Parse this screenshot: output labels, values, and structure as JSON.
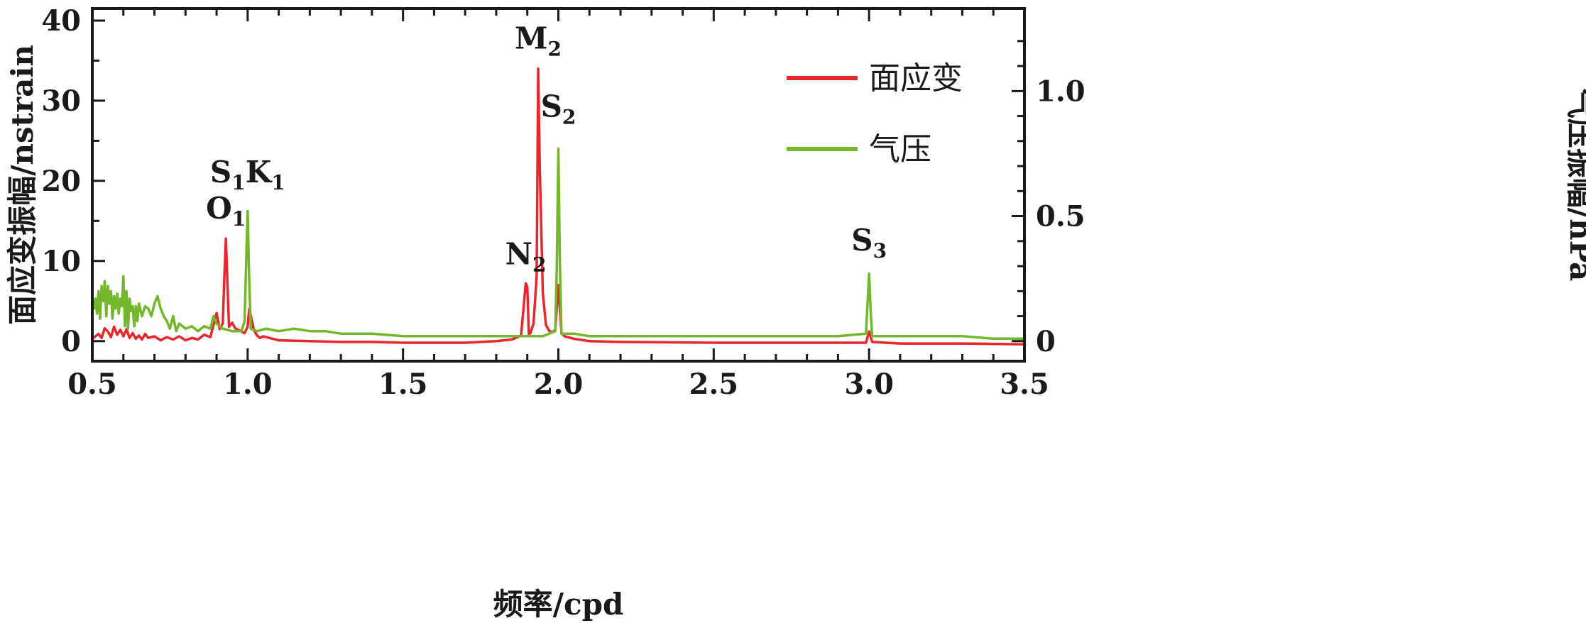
{
  "chart_data": {
    "type": "line",
    "xlabel": "频率/cpd",
    "ylabel_left": "面应变振幅/nstrain",
    "ylabel_right": "气压振幅/hPa",
    "xlim": [
      0.5,
      3.5
    ],
    "ylim_left": [
      -2.5,
      41.5
    ],
    "ylim_right": [
      -0.08,
      1.33
    ],
    "x_ticks": [
      "0.5",
      "1.0",
      "1.5",
      "2.0",
      "2.5",
      "3.0",
      "3.5"
    ],
    "y_left_ticks": [
      "0",
      "10",
      "20",
      "30",
      "40"
    ],
    "y_right_ticks": [
      "0",
      "0.5",
      "1.0"
    ],
    "legend_position": "top-right",
    "series": [
      {
        "name": "面应变",
        "axis": "left",
        "color": "#e8272d",
        "points": [
          [
            0.5,
            0.3
          ],
          [
            0.51,
            0.6
          ],
          [
            0.52,
            0.9
          ],
          [
            0.53,
            0.4
          ],
          [
            0.54,
            1.6
          ],
          [
            0.55,
            1.2
          ],
          [
            0.56,
            0.5
          ],
          [
            0.57,
            1.8
          ],
          [
            0.58,
            0.8
          ],
          [
            0.59,
            1.4
          ],
          [
            0.6,
            0.6
          ],
          [
            0.61,
            1.5
          ],
          [
            0.62,
            0.4
          ],
          [
            0.63,
            1.0
          ],
          [
            0.64,
            0.3
          ],
          [
            0.65,
            0.7
          ],
          [
            0.66,
            0.2
          ],
          [
            0.67,
            0.9
          ],
          [
            0.68,
            0.4
          ],
          [
            0.7,
            0.6
          ],
          [
            0.72,
            0.1
          ],
          [
            0.74,
            0.5
          ],
          [
            0.76,
            0.2
          ],
          [
            0.78,
            0.6
          ],
          [
            0.8,
            0.1
          ],
          [
            0.82,
            0.4
          ],
          [
            0.84,
            0.2
          ],
          [
            0.86,
            0.8
          ],
          [
            0.88,
            0.5
          ],
          [
            0.89,
            2.0
          ],
          [
            0.9,
            3.5
          ],
          [
            0.91,
            1.5
          ],
          [
            0.92,
            2.2
          ],
          [
            0.925,
            8.0
          ],
          [
            0.93,
            12.8
          ],
          [
            0.935,
            7.0
          ],
          [
            0.94,
            1.8
          ],
          [
            0.95,
            2.3
          ],
          [
            0.96,
            1.6
          ],
          [
            0.97,
            1.4
          ],
          [
            0.98,
            1.2
          ],
          [
            0.99,
            1.0
          ],
          [
            1.0,
            1.8
          ],
          [
            1.005,
            4.0
          ],
          [
            1.01,
            3.2
          ],
          [
            1.02,
            1.4
          ],
          [
            1.03,
            0.7
          ],
          [
            1.04,
            0.4
          ],
          [
            1.05,
            0.6
          ],
          [
            1.1,
            0.1
          ],
          [
            1.2,
            0.0
          ],
          [
            1.3,
            -0.1
          ],
          [
            1.4,
            -0.1
          ],
          [
            1.5,
            -0.2
          ],
          [
            1.6,
            -0.2
          ],
          [
            1.7,
            -0.2
          ],
          [
            1.8,
            0.0
          ],
          [
            1.85,
            0.2
          ],
          [
            1.88,
            0.7
          ],
          [
            1.895,
            7.2
          ],
          [
            1.9,
            6.8
          ],
          [
            1.905,
            0.9
          ],
          [
            1.91,
            1.0
          ],
          [
            1.92,
            2.2
          ],
          [
            1.93,
            8.0
          ],
          [
            1.935,
            34.0
          ],
          [
            1.94,
            22.0
          ],
          [
            1.95,
            6.0
          ],
          [
            1.96,
            2.0
          ],
          [
            1.97,
            1.3
          ],
          [
            1.98,
            1.1
          ],
          [
            1.99,
            1.4
          ],
          [
            2.0,
            7.0
          ],
          [
            2.005,
            4.0
          ],
          [
            2.01,
            1.0
          ],
          [
            2.02,
            0.6
          ],
          [
            2.05,
            0.3
          ],
          [
            2.1,
            0.0
          ],
          [
            2.2,
            -0.1
          ],
          [
            2.5,
            -0.2
          ],
          [
            2.8,
            -0.2
          ],
          [
            2.99,
            -0.2
          ],
          [
            3.0,
            1.2
          ],
          [
            3.01,
            -0.1
          ],
          [
            3.1,
            -0.3
          ],
          [
            3.3,
            -0.3
          ],
          [
            3.5,
            -0.4
          ]
        ]
      },
      {
        "name": "气压",
        "axis": "right",
        "color": "#73b72b",
        "points": [
          [
            0.5,
            0.16
          ],
          [
            0.505,
            0.13
          ],
          [
            0.51,
            0.17
          ],
          [
            0.515,
            0.11
          ],
          [
            0.52,
            0.2
          ],
          [
            0.525,
            0.09
          ],
          [
            0.53,
            0.22
          ],
          [
            0.535,
            0.16
          ],
          [
            0.54,
            0.24
          ],
          [
            0.545,
            0.1
          ],
          [
            0.55,
            0.22
          ],
          [
            0.555,
            0.15
          ],
          [
            0.56,
            0.2
          ],
          [
            0.565,
            0.09
          ],
          [
            0.57,
            0.18
          ],
          [
            0.575,
            0.13
          ],
          [
            0.58,
            0.19
          ],
          [
            0.585,
            0.11
          ],
          [
            0.59,
            0.17
          ],
          [
            0.595,
            0.14
          ],
          [
            0.6,
            0.26
          ],
          [
            0.605,
            0.06
          ],
          [
            0.61,
            0.2
          ],
          [
            0.615,
            0.05
          ],
          [
            0.62,
            0.17
          ],
          [
            0.625,
            0.12
          ],
          [
            0.63,
            0.14
          ],
          [
            0.635,
            0.06
          ],
          [
            0.64,
            0.14
          ],
          [
            0.645,
            0.08
          ],
          [
            0.65,
            0.15
          ],
          [
            0.66,
            0.1
          ],
          [
            0.67,
            0.14
          ],
          [
            0.68,
            0.13
          ],
          [
            0.69,
            0.1
          ],
          [
            0.7,
            0.15
          ],
          [
            0.71,
            0.18
          ],
          [
            0.72,
            0.13
          ],
          [
            0.73,
            0.1
          ],
          [
            0.74,
            0.08
          ],
          [
            0.75,
            0.05
          ],
          [
            0.76,
            0.1
          ],
          [
            0.77,
            0.04
          ],
          [
            0.78,
            0.07
          ],
          [
            0.8,
            0.05
          ],
          [
            0.82,
            0.06
          ],
          [
            0.84,
            0.04
          ],
          [
            0.86,
            0.06
          ],
          [
            0.88,
            0.05
          ],
          [
            0.89,
            0.1
          ],
          [
            0.9,
            0.07
          ],
          [
            0.92,
            0.05
          ],
          [
            0.95,
            0.04
          ],
          [
            0.98,
            0.04
          ],
          [
            0.99,
            0.08
          ],
          [
            0.995,
            0.3
          ],
          [
            1.0,
            0.52
          ],
          [
            1.005,
            0.25
          ],
          [
            1.01,
            0.05
          ],
          [
            1.03,
            0.04
          ],
          [
            1.06,
            0.05
          ],
          [
            1.1,
            0.04
          ],
          [
            1.15,
            0.05
          ],
          [
            1.2,
            0.04
          ],
          [
            1.25,
            0.04
          ],
          [
            1.3,
            0.03
          ],
          [
            1.4,
            0.03
          ],
          [
            1.5,
            0.02
          ],
          [
            1.6,
            0.02
          ],
          [
            1.7,
            0.02
          ],
          [
            1.8,
            0.02
          ],
          [
            1.9,
            0.02
          ],
          [
            1.95,
            0.02
          ],
          [
            1.99,
            0.04
          ],
          [
            1.995,
            0.3
          ],
          [
            2.0,
            0.77
          ],
          [
            2.005,
            0.3
          ],
          [
            2.01,
            0.03
          ],
          [
            2.05,
            0.03
          ],
          [
            2.1,
            0.02
          ],
          [
            2.2,
            0.02
          ],
          [
            2.3,
            0.02
          ],
          [
            2.4,
            0.02
          ],
          [
            2.5,
            0.02
          ],
          [
            2.6,
            0.02
          ],
          [
            2.7,
            0.02
          ],
          [
            2.8,
            0.02
          ],
          [
            2.9,
            0.02
          ],
          [
            2.99,
            0.03
          ],
          [
            2.995,
            0.15
          ],
          [
            3.0,
            0.27
          ],
          [
            3.005,
            0.12
          ],
          [
            3.01,
            0.02
          ],
          [
            3.1,
            0.02
          ],
          [
            3.2,
            0.02
          ],
          [
            3.3,
            0.02
          ],
          [
            3.4,
            0.01
          ],
          [
            3.5,
            0.01
          ]
        ]
      }
    ],
    "annotations": [
      {
        "main": "O",
        "sub": "1",
        "x": 0.93,
        "y": 13.0
      },
      {
        "main": "S",
        "sub": "1",
        "main2": "K",
        "sub2": "1",
        "x": 1.0,
        "y": 17.5
      },
      {
        "main": "N",
        "sub": "2",
        "x": 1.895,
        "y": 7.3
      },
      {
        "main": "M",
        "sub": "2",
        "x": 1.935,
        "y": 34.2
      },
      {
        "main": "S",
        "sub": "2",
        "x": 2.0,
        "y": 25.7
      },
      {
        "main": "S",
        "sub": "3",
        "x": 3.0,
        "y": 9.0
      }
    ]
  }
}
